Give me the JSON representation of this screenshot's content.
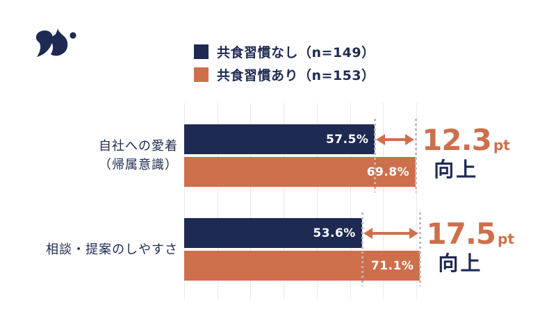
{
  "colors": {
    "bg": "#ffffff",
    "navy": "#1e2a52",
    "orange": "#ce6f4c",
    "grid": "#e9e9e9",
    "guide": "#b9b9b9",
    "value_text": "#ffffff"
  },
  "legend": {
    "items": [
      {
        "label": "共食習慣なし（n=149）",
        "color": "#1e2a52"
      },
      {
        "label": "共食習慣あり（n=153）",
        "color": "#ce6f4c"
      }
    ]
  },
  "chart_data": {
    "type": "bar",
    "orientation": "horizontal",
    "categories": [
      {
        "lines": [
          "自社への愛着",
          "（帰属意識）"
        ]
      },
      {
        "lines": [
          "相談・提案のしやすさ"
        ]
      }
    ],
    "series": [
      {
        "name": "共食習慣なし（n=149）",
        "color": "#1e2a52",
        "values": [
          57.5,
          53.6
        ],
        "labels": [
          "57.5%",
          "53.6%"
        ]
      },
      {
        "name": "共食習慣あり（n=153）",
        "color": "#ce6f4c",
        "values": [
          69.8,
          71.1
        ],
        "labels": [
          "69.8%",
          "71.1%"
        ]
      }
    ],
    "annotations": [
      {
        "value": "12.3",
        "unit": "pt",
        "label": "向上"
      },
      {
        "value": "17.5",
        "unit": "pt",
        "label": "向上"
      }
    ],
    "xlim": [
      0,
      75
    ],
    "grid": true,
    "gridline_step": 10,
    "legend_position": "top",
    "title": "",
    "xlabel": "",
    "ylabel": ""
  }
}
